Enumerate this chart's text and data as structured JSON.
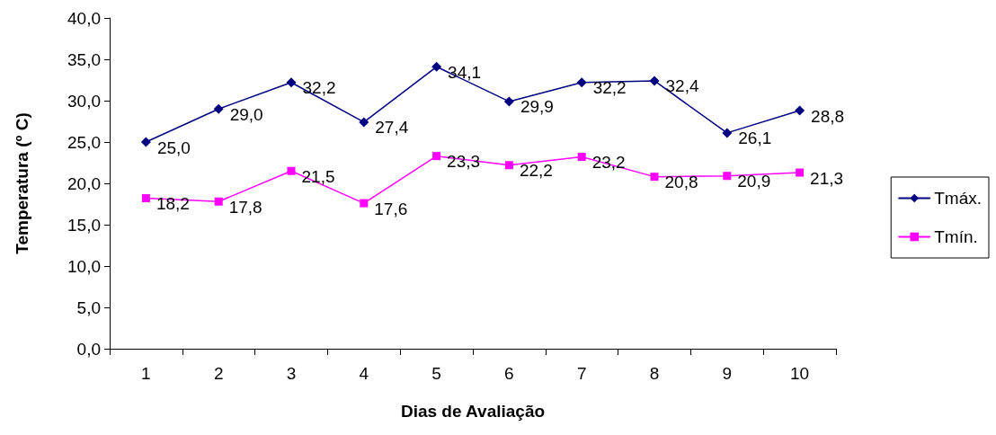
{
  "chart_data": {
    "type": "line",
    "xlabel": "Dias de Avaliação",
    "ylabel": "Temperatura (º C)",
    "categories": [
      "1",
      "2",
      "3",
      "4",
      "5",
      "6",
      "7",
      "8",
      "9",
      "10"
    ],
    "series": [
      {
        "name": "Tmáx.",
        "color": "#000080",
        "marker": "diamond",
        "values": [
          25.0,
          29.0,
          32.2,
          27.4,
          34.1,
          29.9,
          32.2,
          32.4,
          26.1,
          28.8
        ],
        "value_labels": [
          "25,0",
          "29,0",
          "32,2",
          "27,4",
          "34,1",
          "29,9",
          "32,2",
          "32,4",
          "26,1",
          "28,8"
        ]
      },
      {
        "name": "Tmín.",
        "color": "#ff00ff",
        "marker": "square",
        "values": [
          18.2,
          17.8,
          21.5,
          17.6,
          23.3,
          22.2,
          23.2,
          20.8,
          20.9,
          21.3
        ],
        "value_labels": [
          "18,2",
          "17,8",
          "21,5",
          "17,6",
          "23,3",
          "22,2",
          "23,2",
          "20,8",
          "20,9",
          "21,3"
        ]
      }
    ],
    "ylim": [
      0,
      40
    ],
    "yticks": [
      {
        "value": 0,
        "label": "0,0"
      },
      {
        "value": 5,
        "label": "5,0"
      },
      {
        "value": 10,
        "label": "10,0"
      },
      {
        "value": 15,
        "label": "15,0"
      },
      {
        "value": 20,
        "label": "20,0"
      },
      {
        "value": 25,
        "label": "25,0"
      },
      {
        "value": 30,
        "label": "30,0"
      },
      {
        "value": 35,
        "label": "35,0"
      },
      {
        "value": 40,
        "label": "40,0"
      }
    ],
    "grid": false,
    "legend": "right",
    "line_style": "solid"
  }
}
